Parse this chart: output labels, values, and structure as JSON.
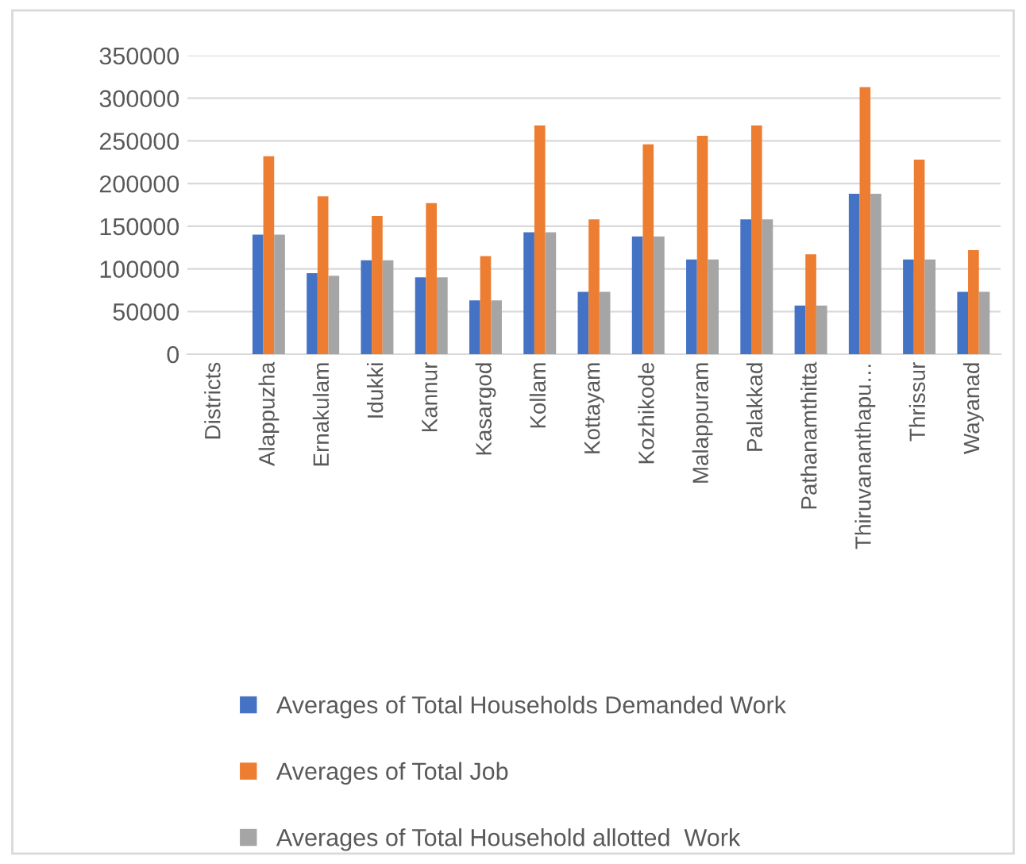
{
  "chart_data": {
    "type": "bar",
    "categories": [
      "Districts",
      "Alappuzha",
      "Ernakulam",
      "Idukki",
      "Kannur",
      "Kasargod",
      "Kollam",
      "Kottayam",
      "Kozhikode",
      "Malappuram",
      "Palakkad",
      "Pathanamthitta",
      "Thiruvananthapu…",
      "Thrissur",
      "Wayanad"
    ],
    "series": [
      {
        "name": "Averages of Total Households Demanded Work",
        "color": "#4472c4",
        "values": [
          null,
          140000,
          95000,
          110000,
          90000,
          63000,
          143000,
          73000,
          138000,
          111000,
          158000,
          57000,
          188000,
          111000,
          73000
        ]
      },
      {
        "name": "Averages of Total Job",
        "color": "#ed7d31",
        "values": [
          null,
          232000,
          185000,
          162000,
          177000,
          115000,
          268000,
          158000,
          246000,
          256000,
          268000,
          117000,
          313000,
          228000,
          122000
        ]
      },
      {
        "name": "Averages of Total Household allotted  Work",
        "color": "#a5a5a5",
        "values": [
          null,
          140000,
          92000,
          110000,
          90000,
          63000,
          143000,
          73000,
          138000,
          111000,
          158000,
          57000,
          188000,
          111000,
          73000
        ]
      }
    ],
    "ylim": [
      0,
      350000
    ],
    "yticks": [
      0,
      50000,
      100000,
      150000,
      200000,
      250000,
      300000,
      350000
    ],
    "grid": "y",
    "legend": "bottom"
  }
}
